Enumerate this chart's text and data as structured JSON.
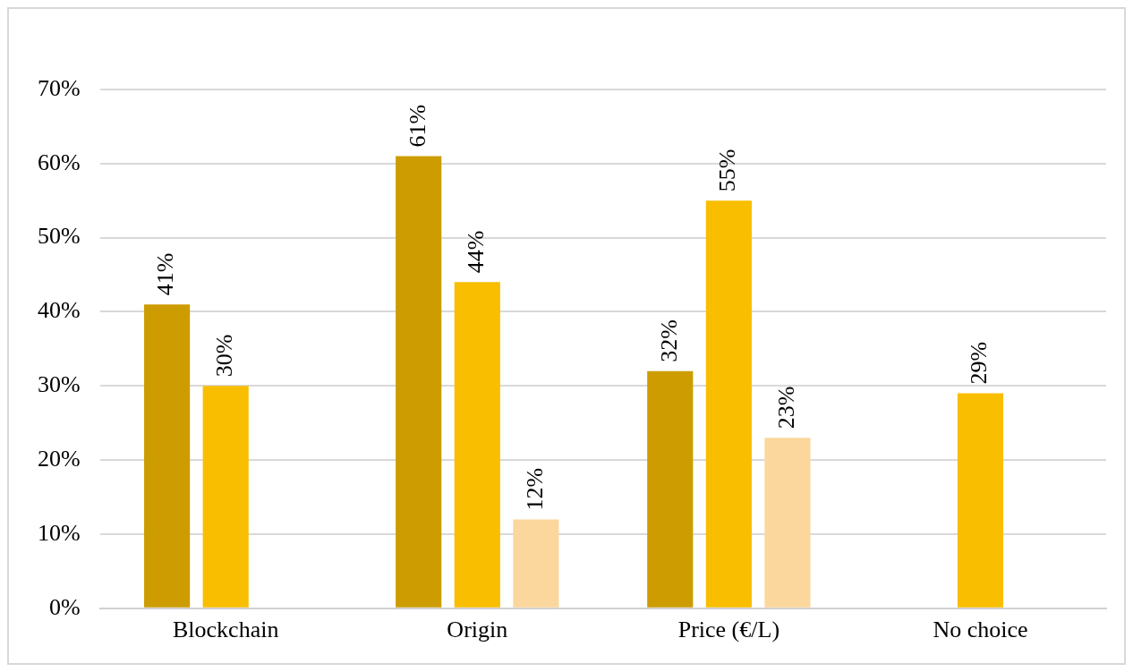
{
  "chart_data": {
    "type": "bar",
    "categories": [
      "Blockchain",
      "Origin",
      "Price (€/L)",
      "No choice"
    ],
    "series": [
      {
        "color": "#cc9c00",
        "values": [
          41,
          61,
          32,
          null
        ]
      },
      {
        "color": "#f9be00",
        "values": [
          30,
          44,
          55,
          29
        ]
      },
      {
        "color": "#fbd79d",
        "values": [
          null,
          12,
          23,
          null
        ]
      }
    ],
    "ylim": [
      0,
      70
    ],
    "yticks": [
      {
        "value": 0,
        "label": "0%"
      },
      {
        "value": 10,
        "label": "10%"
      },
      {
        "value": 20,
        "label": "20%"
      },
      {
        "value": 30,
        "label": "30%"
      },
      {
        "value": 40,
        "label": "40%"
      },
      {
        "value": 50,
        "label": "50%"
      },
      {
        "value": 60,
        "label": "60%"
      },
      {
        "value": 70,
        "label": "70%"
      }
    ],
    "grid": "y",
    "legend": false,
    "value_labels": [
      [
        "41%",
        "61%",
        "32%",
        null
      ],
      [
        "30%",
        "44%",
        "55%",
        "29%"
      ],
      [
        null,
        "12%",
        "23%",
        null
      ]
    ]
  }
}
